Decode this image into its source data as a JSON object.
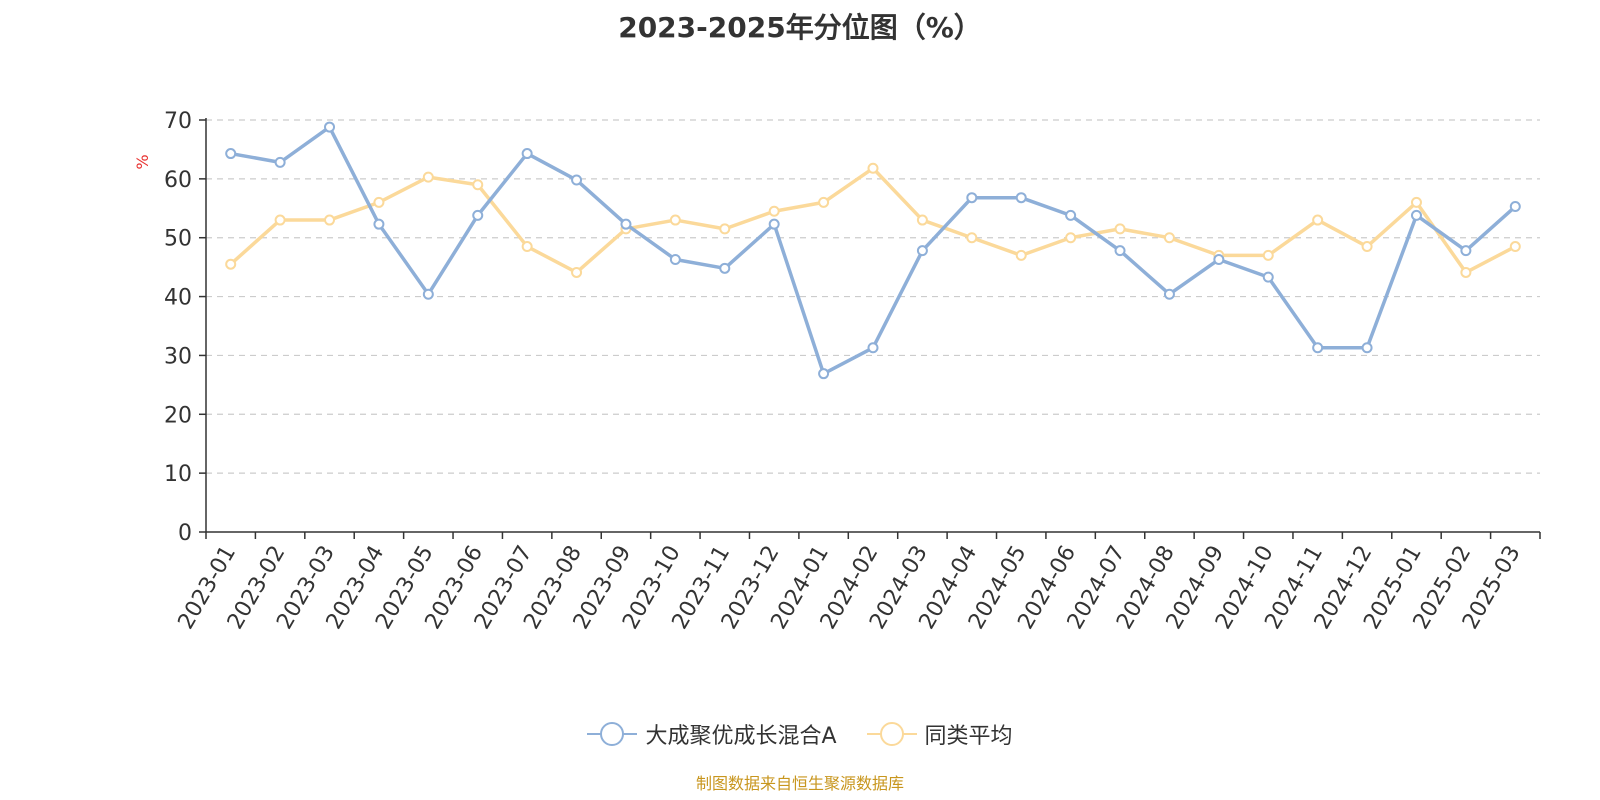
{
  "title": "2023-2025年分位图（%）",
  "source_note": "制图数据来自恒生聚源数据库",
  "colors": {
    "series_a": "#8eafd8",
    "series_b": "#fbd99a",
    "axis": "#333333",
    "grid": "#cccccc",
    "ylabel": "#e8302e",
    "source": "#c8961e"
  },
  "chart_data": {
    "type": "line",
    "title": "2023-2025年分位图（%）",
    "xlabel": "",
    "ylabel": "%",
    "ylim": [
      0,
      70
    ],
    "yticks": [
      0,
      10,
      20,
      30,
      40,
      50,
      60,
      70
    ],
    "grid": true,
    "legend_position": "bottom",
    "categories": [
      "2023-01",
      "2023-02",
      "2023-03",
      "2023-04",
      "2023-05",
      "2023-06",
      "2023-07",
      "2023-08",
      "2023-09",
      "2023-10",
      "2023-11",
      "2023-12",
      "2024-01",
      "2024-02",
      "2024-03",
      "2024-04",
      "2024-05",
      "2024-06",
      "2024-07",
      "2024-08",
      "2024-09",
      "2024-10",
      "2024-11",
      "2024-12",
      "2025-01",
      "2025-02",
      "2025-03"
    ],
    "series": [
      {
        "name": "大成聚优成长混合A",
        "values": [
          64.3,
          62.8,
          68.8,
          52.3,
          40.4,
          53.8,
          64.3,
          59.8,
          52.3,
          46.3,
          44.8,
          52.3,
          26.9,
          31.3,
          47.8,
          56.8,
          56.8,
          53.8,
          47.8,
          40.4,
          46.3,
          43.3,
          31.3,
          31.3,
          53.8,
          47.8,
          55.3
        ]
      },
      {
        "name": "同类平均",
        "values": [
          45.5,
          53.0,
          53.0,
          56.0,
          60.3,
          59.0,
          48.5,
          44.1,
          51.5,
          53.0,
          51.5,
          54.5,
          56.0,
          61.8,
          53.0,
          50.0,
          47.0,
          50.0,
          51.5,
          50.0,
          47.0,
          47.0,
          53.0,
          48.5,
          56.0,
          44.1,
          48.5
        ]
      }
    ]
  }
}
